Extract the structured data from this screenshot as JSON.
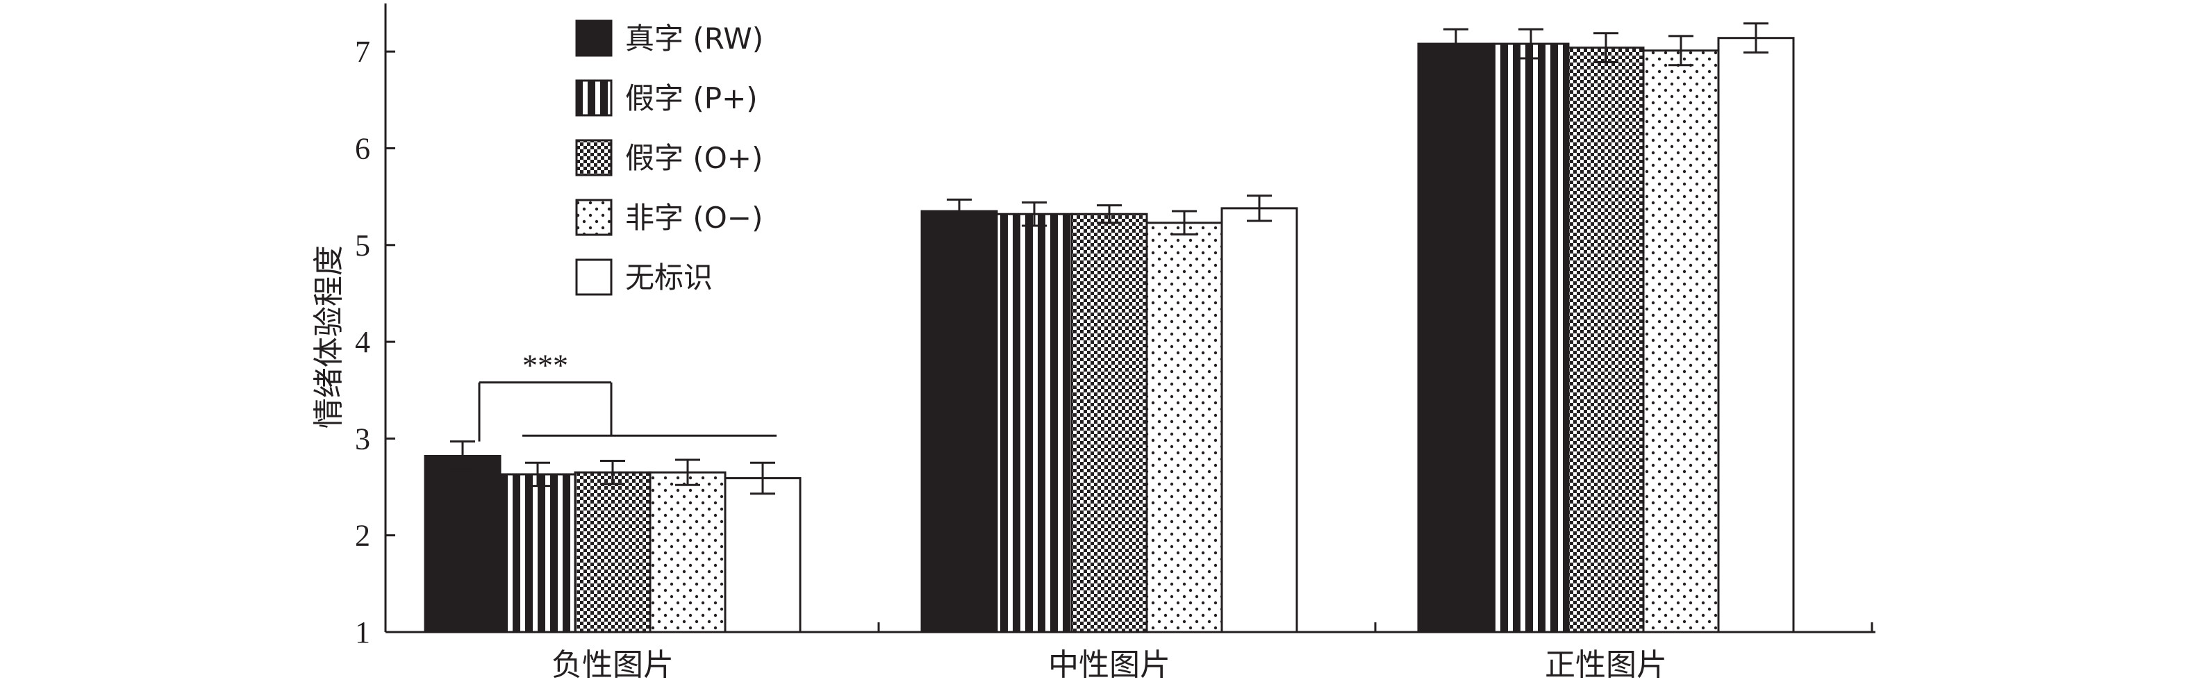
{
  "chart_data": {
    "type": "bar",
    "categories": [
      "负性图片",
      "中性图片",
      "正性图片"
    ],
    "ylabel": "情绪体验程度",
    "xlabel": "",
    "ylim": [
      1,
      7.5
    ],
    "yticks": [
      1,
      2,
      3,
      4,
      5,
      6,
      7
    ],
    "grid": false,
    "legend_position": "top-left",
    "series": [
      {
        "name": "真字 (RW)",
        "pattern": "solid",
        "values": [
          2.82,
          5.35,
          7.08
        ],
        "errors": [
          0.15,
          0.12,
          0.15
        ]
      },
      {
        "name": "假字 (P+)",
        "pattern": "vstripe",
        "values": [
          2.63,
          5.32,
          7.08
        ],
        "errors": [
          0.12,
          0.12,
          0.15
        ]
      },
      {
        "name": "假字 (O+)",
        "pattern": "check",
        "values": [
          2.65,
          5.32,
          7.04
        ],
        "errors": [
          0.12,
          0.09,
          0.15
        ]
      },
      {
        "name": "非字 (O−)",
        "pattern": "dots",
        "values": [
          2.65,
          5.23,
          7.01
        ],
        "errors": [
          0.13,
          0.12,
          0.15
        ]
      },
      {
        "name": "无标识",
        "pattern": "white",
        "values": [
          2.59,
          5.38,
          7.14
        ],
        "errors": [
          0.16,
          0.13,
          0.15
        ]
      }
    ],
    "annotations": [
      {
        "text": "***",
        "from_category": 0,
        "from_series": 0,
        "to_series": [
          1,
          4
        ]
      }
    ]
  }
}
